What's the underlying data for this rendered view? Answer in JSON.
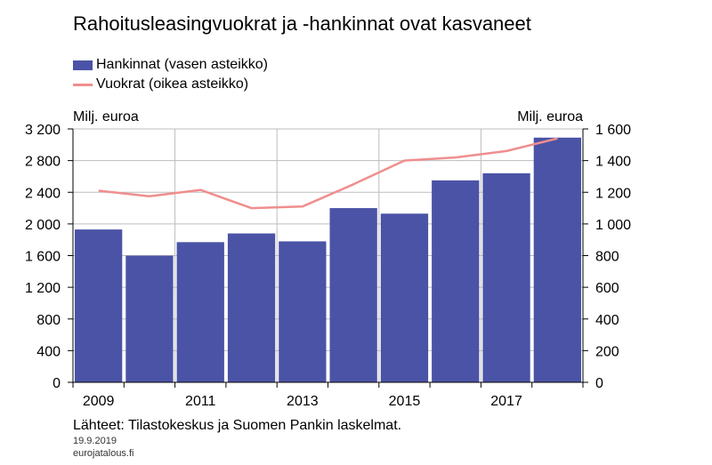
{
  "chart_data": {
    "type": "bar",
    "title": "Rahoitusleasingvuokrat ja -hankinnat ovat kasvaneet",
    "categories": [
      "2009",
      "2010",
      "2011",
      "2012",
      "2013",
      "2014",
      "2015",
      "2016",
      "2017",
      "2018"
    ],
    "x_tick_labels": [
      "2009",
      "2011",
      "2013",
      "2015",
      "2017"
    ],
    "series": [
      {
        "name": "Hankinnat (vasen asteikko)",
        "type": "bar",
        "axis": "left",
        "color": "#4b53a6",
        "values": [
          1930,
          1600,
          1770,
          1880,
          1780,
          2200,
          2130,
          2550,
          2640,
          3090
        ]
      },
      {
        "name": "Vuokrat (oikea asteikko)",
        "type": "line",
        "axis": "right",
        "color": "#f08e8e",
        "values": [
          1210,
          1175,
          1215,
          1100,
          1110,
          1250,
          1400,
          1420,
          1460,
          1540
        ]
      }
    ],
    "y_left": {
      "label": "Milj. euroa",
      "min": 0,
      "max": 3200,
      "step": 400,
      "tick_labels": [
        "0",
        "400",
        "800",
        "1 200",
        "1 600",
        "2 000",
        "2 400",
        "2 800",
        "3 200"
      ]
    },
    "y_right": {
      "label": "Milj. euroa",
      "min": 0,
      "max": 1600,
      "step": 200,
      "tick_labels": [
        "0",
        "200",
        "400",
        "600",
        "800",
        "1 000",
        "1 200",
        "1 400",
        "1 600"
      ]
    },
    "grid": true,
    "legend_position": "top-left"
  },
  "source": "Lähteet: Tilastokeskus ja Suomen Pankin laskelmat.",
  "date": "19.9.2019",
  "site": "eurojatalous.fi"
}
